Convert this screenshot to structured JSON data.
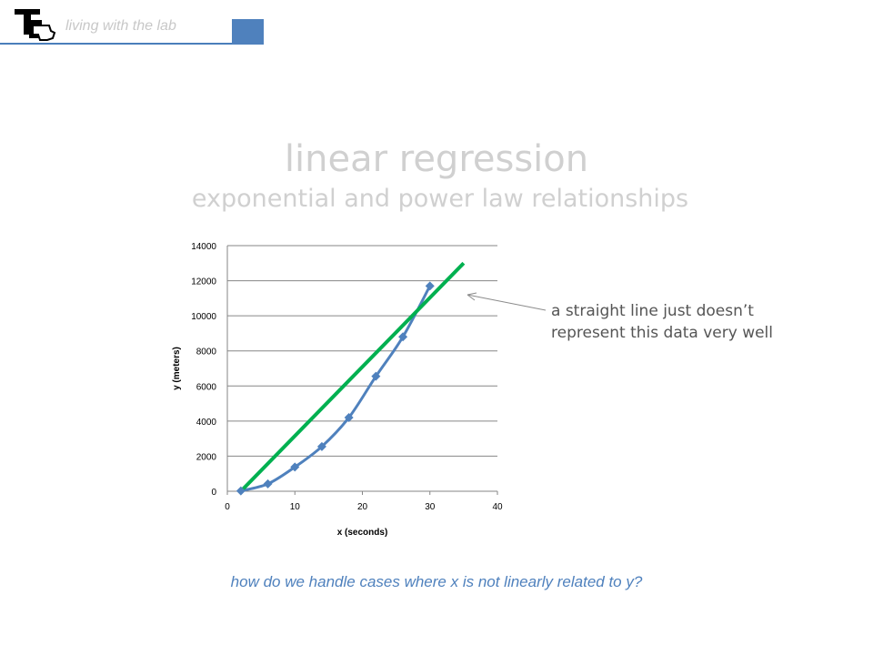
{
  "header": {
    "text": "living with the lab"
  },
  "slide": {
    "title": "linear regression",
    "subtitle": "exponential and power law relationships",
    "annotation_line1": "a straight line just doesn’t",
    "annotation_line2": "represent this data very well",
    "question": "how do we handle cases where x is not linearly related to y?"
  },
  "colors": {
    "accent": "#4f81bd",
    "data_series": "#4f81bd",
    "fit_line": "#00b050",
    "title_gray": "#d0d0d0"
  },
  "chart_data": {
    "type": "scatter",
    "title": "",
    "xlabel": "x (seconds)",
    "ylabel": "y (meters)",
    "xlim": [
      0,
      40
    ],
    "ylim": [
      0,
      14000
    ],
    "x_ticks": [
      "0",
      "10",
      "20",
      "30",
      "40"
    ],
    "y_ticks": [
      "0",
      "2000",
      "4000",
      "6000",
      "8000",
      "10000",
      "12000",
      "14000"
    ],
    "grid": "horizontal",
    "legend": "none",
    "series": [
      {
        "x": [
          2,
          6,
          10,
          14,
          18,
          22,
          26,
          30
        ],
        "y": [
          20,
          420,
          1380,
          2550,
          4200,
          6550,
          8800,
          11700
        ],
        "style": "smooth line with diamond markers"
      },
      {
        "x": [
          2,
          35
        ],
        "y": [
          0,
          13000
        ],
        "style": "straight line"
      }
    ]
  }
}
